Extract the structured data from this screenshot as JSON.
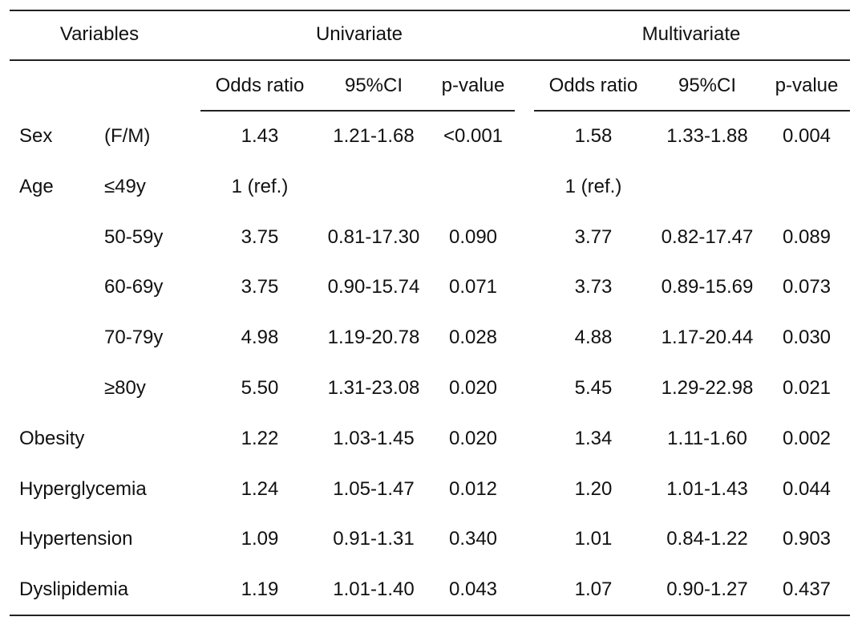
{
  "header": {
    "variables": "Variables",
    "univariate": "Univariate",
    "multivariate": "Multivariate"
  },
  "subheader": {
    "uni": [
      "Odds ratio",
      "95%CI",
      "p-value"
    ],
    "multi": [
      "Odds ratio",
      "95%CI",
      "p-value"
    ]
  },
  "rows": [
    {
      "label": "Sex",
      "sub": "(F/M)",
      "uni": [
        "1.43",
        "1.21-1.68",
        "<0.001"
      ],
      "multi": [
        "1.58",
        "1.33-1.88",
        "0.004"
      ]
    },
    {
      "label": "Age",
      "sub": "≤49y",
      "uni": [
        "1 (ref.)",
        "",
        ""
      ],
      "multi": [
        "1 (ref.)",
        "",
        ""
      ]
    },
    {
      "label": "",
      "sub": "50-59y",
      "uni": [
        "3.75",
        "0.81-17.30",
        "0.090"
      ],
      "multi": [
        "3.77",
        "0.82-17.47",
        "0.089"
      ]
    },
    {
      "label": "",
      "sub": "60-69y",
      "uni": [
        "3.75",
        "0.90-15.74",
        "0.071"
      ],
      "multi": [
        "3.73",
        "0.89-15.69",
        "0.073"
      ]
    },
    {
      "label": "",
      "sub": "70-79y",
      "uni": [
        "4.98",
        "1.19-20.78",
        "0.028"
      ],
      "multi": [
        "4.88",
        "1.17-20.44",
        "0.030"
      ]
    },
    {
      "label": "",
      "sub": "≥80y",
      "uni": [
        "5.50",
        "1.31-23.08",
        "0.020"
      ],
      "multi": [
        "5.45",
        "1.29-22.98",
        "0.021"
      ]
    },
    {
      "label": "Obesity",
      "sub": "",
      "uni": [
        "1.22",
        "1.03-1.45",
        "0.020"
      ],
      "multi": [
        "1.34",
        "1.11-1.60",
        "0.002"
      ]
    },
    {
      "label": "Hyperglycemia",
      "sub": "",
      "uni": [
        "1.24",
        "1.05-1.47",
        "0.012"
      ],
      "multi": [
        "1.20",
        "1.01-1.43",
        "0.044"
      ]
    },
    {
      "label": "Hypertension",
      "sub": "",
      "uni": [
        "1.09",
        "0.91-1.31",
        "0.340"
      ],
      "multi": [
        "1.01",
        "0.84-1.22",
        "0.903"
      ]
    },
    {
      "label": "Dyslipidemia",
      "sub": "",
      "uni": [
        "1.19",
        "1.01-1.40",
        "0.043"
      ],
      "multi": [
        "1.07",
        "0.90-1.27",
        "0.437"
      ]
    }
  ]
}
